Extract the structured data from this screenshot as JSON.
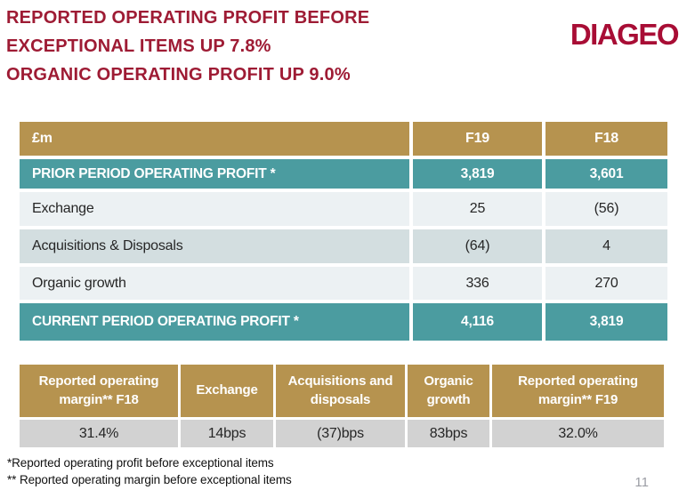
{
  "slide": {
    "title_lines": [
      "REPORTED OPERATING PROFIT BEFORE",
      "EXCEPTIONAL ITEMS UP 7.8%",
      "ORGANIC OPERATING PROFIT UP 9.0%"
    ],
    "logo": "DIAGEO",
    "page_number": "11",
    "footnotes": [
      "*Reported operating profit before exceptional items",
      "** Reported operating margin before exceptional items"
    ]
  },
  "colors": {
    "title_crimson": "#9E1B34",
    "logo_crimson": "#A80D35",
    "header_gold": "#B6934F",
    "teal": "#4B9CA0",
    "row_light": "#ECF1F3",
    "row_mid": "#D3DEE0",
    "value_gray": "#D2D2D2"
  },
  "profit_table": {
    "unit_header": "£m",
    "columns": [
      "F19",
      "F18"
    ],
    "rows": [
      {
        "label": "PRIOR PERIOD OPERATING PROFIT *",
        "f19": "3,819",
        "f18": "3,601"
      },
      {
        "label": "Exchange",
        "f19": "25",
        "f18": "(56)"
      },
      {
        "label": "Acquisitions & Disposals",
        "f19": "(64)",
        "f18": "4"
      },
      {
        "label": "Organic growth",
        "f19": "336",
        "f18": "270"
      },
      {
        "label": "CURRENT PERIOD OPERATING PROFIT *",
        "f19": "4,116",
        "f18": "3,819"
      }
    ]
  },
  "margin_table": {
    "headers": [
      "Reported operating margin**  F18",
      "Exchange",
      "Acquisitions and disposals",
      "Organic growth",
      "Reported operating margin** F19"
    ],
    "values": [
      "31.4%",
      "14bps",
      "(37)bps",
      "83bps",
      "32.0%"
    ]
  }
}
